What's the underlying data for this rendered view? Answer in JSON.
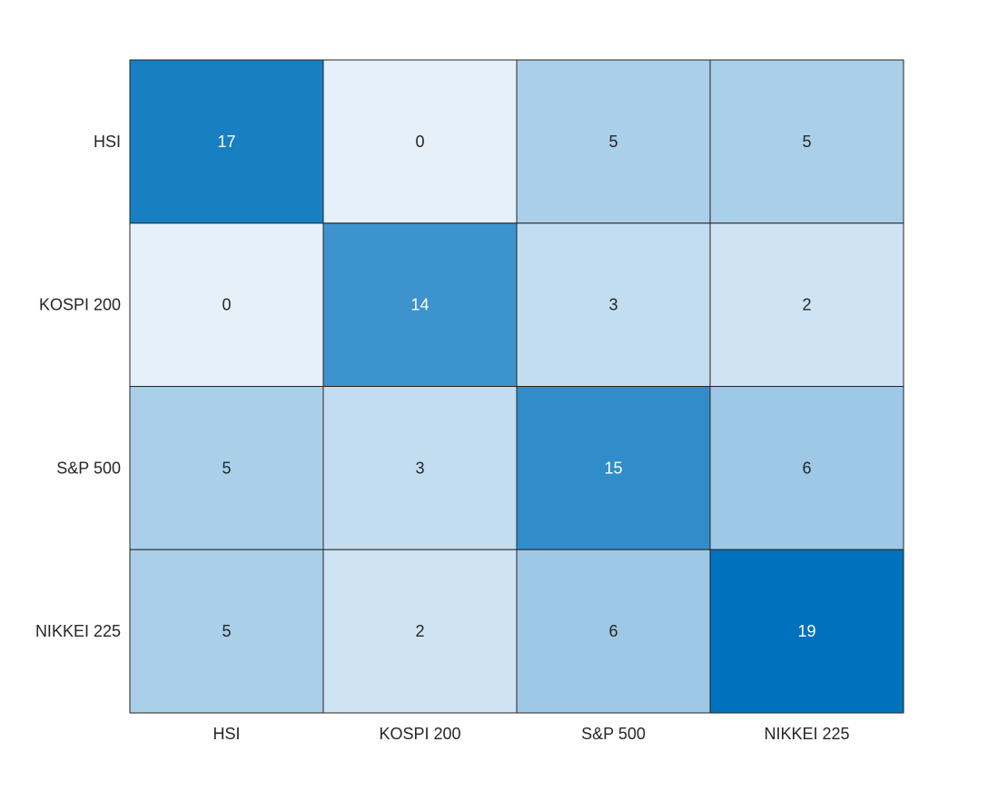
{
  "chart_data": {
    "type": "heatmap",
    "title": "",
    "xlabel": "",
    "ylabel": "",
    "x_categories": [
      "HSI",
      "KOSPI 200",
      "S&P 500",
      "NIKKEI 225"
    ],
    "y_categories": [
      "HSI",
      "KOSPI 200",
      "S&P 500",
      "NIKKEI 225"
    ],
    "values": [
      [
        17,
        0,
        5,
        5
      ],
      [
        0,
        14,
        3,
        2
      ],
      [
        5,
        3,
        15,
        6
      ],
      [
        5,
        2,
        6,
        19
      ]
    ],
    "color_range": [
      0,
      19
    ],
    "colormap": {
      "low": "#e6f0f9",
      "high": "#0072bd"
    },
    "grid": true,
    "legend": "none"
  }
}
